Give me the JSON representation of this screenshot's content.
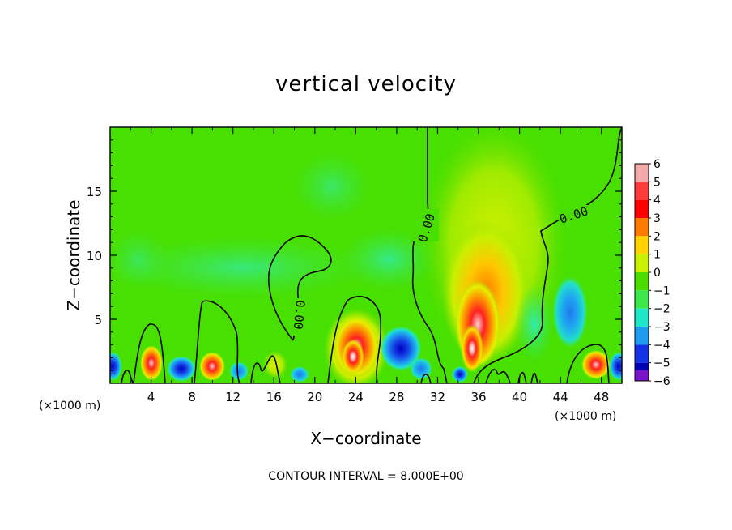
{
  "chart_data": {
    "type": "heatmap",
    "title": "vertical velocity",
    "xlabel": "X−coordinate",
    "ylabel": "Z−coordinate",
    "x_unit_left": "(×1000 m)",
    "x_unit_right": "(×1000 m)",
    "xlim": [
      0,
      50
    ],
    "ylim": [
      0,
      20
    ],
    "x_ticks": [
      4,
      8,
      12,
      16,
      20,
      24,
      28,
      32,
      36,
      40,
      44,
      48
    ],
    "x_tick_labels": [
      "4",
      "8",
      "12",
      "16",
      "20",
      "24",
      "28",
      "32",
      "36",
      "40",
      "44",
      "48"
    ],
    "y_ticks": [
      5,
      10,
      15
    ],
    "y_tick_labels": [
      "5",
      "10",
      "15"
    ],
    "footer": "CONTOUR INTERVAL = 8.000E+00",
    "contour_labels": [
      "0.00",
      "0.00",
      "0.00"
    ],
    "colorbar": {
      "levels": [
        6,
        5,
        4,
        3,
        2,
        1,
        0,
        -1,
        -2,
        -3,
        -4,
        -5,
        -6
      ],
      "labels": [
        "6",
        "5",
        "4",
        "3",
        "2",
        "1",
        "0",
        "−1",
        "−2",
        "−3",
        "−4",
        "−5",
        "−6"
      ],
      "colors": [
        "#f4a9a9",
        "#ff3c3c",
        "#ff0000",
        "#ff7a00",
        "#ffd200",
        "#c8f000",
        "#4cdc00",
        "#3ce84a",
        "#1ee6c8",
        "#1e9cf0",
        "#1432e6",
        "#0000b4",
        "#7a14c8"
      ]
    },
    "features": [
      {
        "kind": "updraft",
        "x": 35.5,
        "z": 5,
        "value": 6
      },
      {
        "kind": "updraft",
        "x": 24.5,
        "z": 2.5,
        "value": 6
      },
      {
        "kind": "updraft",
        "x": 10,
        "z": 1.2,
        "value": 5
      },
      {
        "kind": "updraft",
        "x": 4,
        "z": 1.5,
        "value": 4
      },
      {
        "kind": "updraft",
        "x": 47.5,
        "z": 1.5,
        "value": 4
      },
      {
        "kind": "downdraft",
        "x": 28.5,
        "z": 2.5,
        "value": -4
      },
      {
        "kind": "downdraft",
        "x": 44.5,
        "z": 5.5,
        "value": -3
      },
      {
        "kind": "downdraft",
        "x": 7,
        "z": 1,
        "value": -4
      },
      {
        "kind": "downdraft",
        "x": 34,
        "z": 0.6,
        "value": -5
      },
      {
        "kind": "downdraft",
        "x": 0,
        "z": 1.2,
        "value": -4
      },
      {
        "kind": "downdraft",
        "x": 50,
        "z": 1.2,
        "value": -4
      }
    ]
  }
}
